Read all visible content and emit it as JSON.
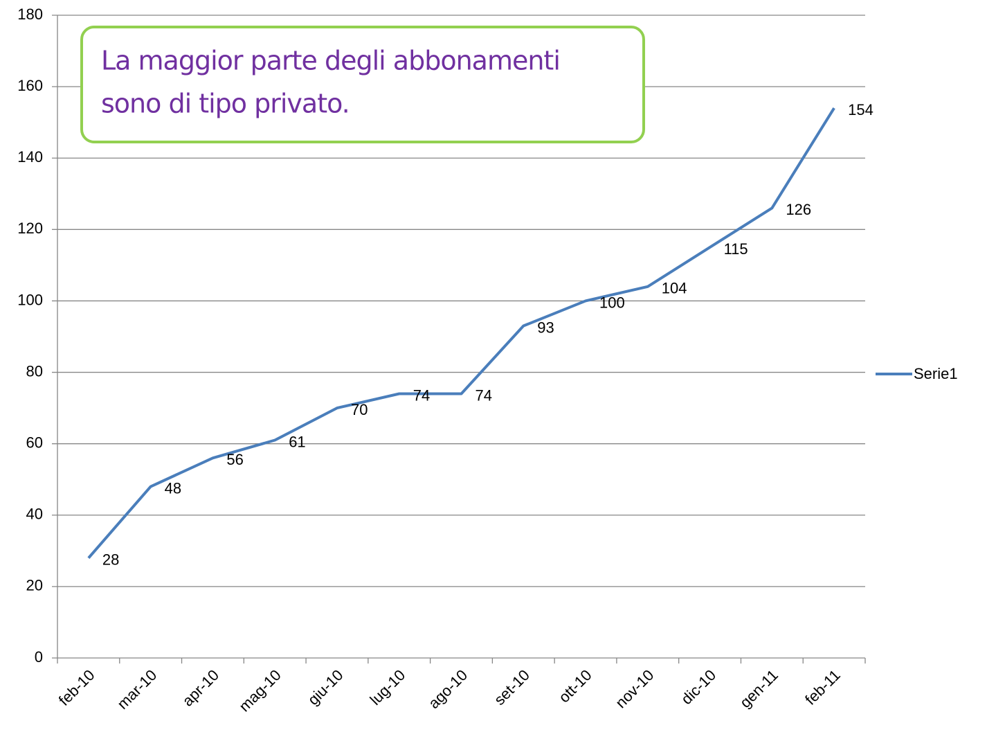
{
  "chart_data": {
    "type": "line",
    "annotation": [
      "La maggior parte degli abbonamenti",
      "sono di tipo privato."
    ],
    "categories": [
      "feb-10",
      "mar-10",
      "apr-10",
      "mag-10",
      "giu-10",
      "lug-10",
      "ago-10",
      "set-10",
      "ott-10",
      "nov-10",
      "dic-10",
      "gen-11",
      "feb-11"
    ],
    "series": [
      {
        "name": "Serie1",
        "color": "#4a7ebb",
        "values": [
          28,
          48,
          56,
          61,
          70,
          74,
          74,
          93,
          100,
          104,
          115,
          126,
          154
        ]
      }
    ],
    "ylim": [
      0,
      180
    ],
    "yticks": [
      0,
      20,
      40,
      60,
      80,
      100,
      120,
      140,
      160,
      180
    ],
    "grid": true,
    "legend": "right",
    "data_labels": true
  }
}
